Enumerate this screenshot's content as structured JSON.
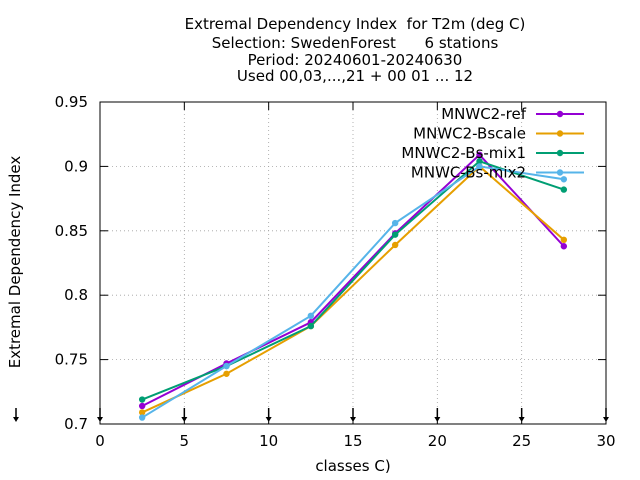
{
  "title_lines": [
    "Extremal Dependency Index  for T2m (deg C)",
    "Selection: SwedenForest      6 stations",
    "Period: 20240601-20240630",
    "Used 00,03,...,21 + 00 01 ... 12"
  ],
  "chart_data": {
    "type": "line",
    "xlabel": "classes C)",
    "ylabel": "Extremal Dependency Index",
    "xlim": [
      0,
      30
    ],
    "ylim": [
      0.7,
      0.95
    ],
    "xticks": [
      0,
      5,
      10,
      15,
      20,
      25,
      30
    ],
    "yticks": [
      0.7,
      0.75,
      0.8,
      0.85,
      0.9,
      0.95
    ],
    "xtick_labels": [
      "0",
      "5",
      "10",
      "15",
      "20",
      "25",
      "30"
    ],
    "ytick_labels": [
      "0.7",
      "0.75",
      "0.8",
      "0.85",
      "0.9",
      "0.95"
    ],
    "grid": true,
    "legend_position": "top-right",
    "x": [
      2.5,
      7.5,
      12.5,
      17.5,
      22.5,
      27.5
    ],
    "series": [
      {
        "name": "MNWC2-ref",
        "color": "#9400d3",
        "values": [
          0.714,
          0.747,
          0.779,
          0.848,
          0.909,
          0.838
        ]
      },
      {
        "name": "MNWC2-Bscale",
        "color": "#e69f00",
        "values": [
          0.709,
          0.739,
          0.776,
          0.839,
          0.9,
          0.843
        ]
      },
      {
        "name": "MNWC2-Bs-mix1",
        "color": "#009e73",
        "values": [
          0.719,
          0.745,
          0.776,
          0.847,
          0.904,
          0.882
        ]
      },
      {
        "name": "MNWC-Bs-mix2",
        "color": "#56b4e9",
        "values": [
          0.705,
          0.745,
          0.784,
          0.856,
          0.9,
          0.89
        ]
      }
    ],
    "bottom_arrow_x": [
      0,
      5,
      10,
      15,
      20,
      25,
      30
    ]
  }
}
